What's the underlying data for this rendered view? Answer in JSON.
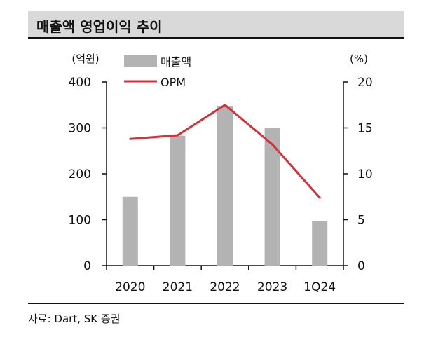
{
  "title": "매출액 영업이익 추이",
  "source": "자료: Dart, SK 증권",
  "colors": {
    "bar": "#b3b3b3",
    "line": "#d6303a",
    "title_bg": "#d9d9d9"
  },
  "chart_data": {
    "type": "bar",
    "categories": [
      "2020",
      "2021",
      "2022",
      "2023",
      "1Q24"
    ],
    "left_unit": "(억원)",
    "right_unit": "(%)",
    "left_ylim": [
      0,
      400
    ],
    "right_ylim": [
      0,
      20
    ],
    "left_ticks": [
      "0",
      "100",
      "200",
      "300",
      "400"
    ],
    "right_ticks": [
      "0",
      "5",
      "10",
      "15",
      "20"
    ],
    "grid": false,
    "legend_position": "top-left",
    "series": [
      {
        "name": "매출액",
        "type": "bar",
        "axis": "left",
        "values": [
          150,
          283,
          348,
          300,
          97
        ]
      },
      {
        "name": "OPM",
        "type": "line",
        "axis": "right",
        "values": [
          13.8,
          14.2,
          17.5,
          13.2,
          7.4
        ]
      }
    ]
  }
}
